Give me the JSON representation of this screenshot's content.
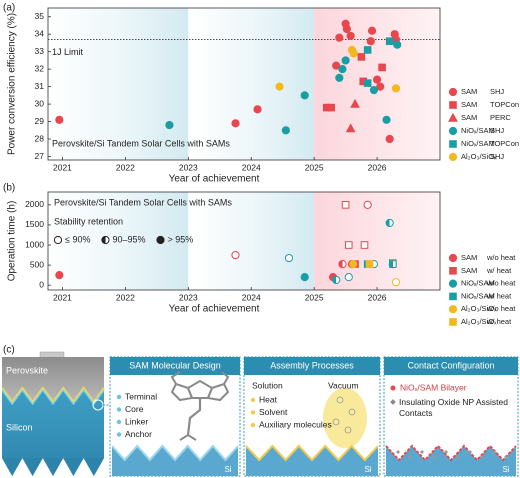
{
  "chart_data": [
    {
      "type": "scatter",
      "panel_label": "(a)",
      "xlabel": "Year of achievement",
      "ylabel": "Power conversion efficiency (%)",
      "annotation": "Perovskite/Si Tandem Solar Cells with SAMs",
      "xlim": [
        2020.77,
        2027.0
      ],
      "ylim": [
        26.8,
        35.5
      ],
      "xticks": [
        2021,
        2022,
        2023,
        2024,
        2025,
        2026
      ],
      "yticks": [
        27,
        28,
        29,
        30,
        31,
        32,
        33,
        34,
        35
      ],
      "hlines": [
        {
          "value": 33.7,
          "label": "1J Limit"
        }
      ],
      "series": [
        {
          "name": "SAM",
          "cell": "SHJ",
          "color": "#e8474e",
          "marker": "circle",
          "x": [
            2020.95,
            2023.75,
            2024.1,
            2025.35,
            2025.4,
            2025.5,
            2025.52,
            2025.58,
            2025.9,
            2025.92,
            2026.0,
            2026.05,
            2026.2,
            2026.28,
            2026.3
          ],
          "values": [
            29.1,
            28.9,
            29.7,
            32.2,
            33.8,
            34.6,
            34.3,
            33.9,
            33.6,
            34.2,
            31.4,
            31.0,
            28.0,
            34.0,
            33.7
          ]
        },
        {
          "name": "SAM",
          "cell": "TOPCon",
          "color": "#e8474e",
          "marker": "square",
          "x": [
            2025.2,
            2025.27,
            2025.75,
            2025.78,
            2026.08
          ],
          "values": [
            29.8,
            29.8,
            32.7,
            31.3,
            32.1
          ]
        },
        {
          "name": "SAM",
          "cell": "PERC",
          "color": "#e8474e",
          "marker": "triangle",
          "x": [
            2025.58,
            2025.65
          ],
          "values": [
            28.6,
            30.0
          ]
        },
        {
          "name": "NiOₓ/SAM",
          "cell": "SHJ",
          "color": "#1a9ea5",
          "marker": "circle",
          "x": [
            2022.7,
            2024.55,
            2024.85,
            2025.4,
            2025.45,
            2025.5,
            2025.95,
            2026.15,
            2026.32
          ],
          "values": [
            28.8,
            28.5,
            30.5,
            31.5,
            32.0,
            32.5,
            30.8,
            29.1,
            33.4
          ]
        },
        {
          "name": "NiOₓ/SAM",
          "cell": "TOPCon",
          "color": "#1a9ea5",
          "marker": "square",
          "x": [
            2025.85,
            2025.85,
            2026.2
          ],
          "values": [
            33.1,
            31.2,
            33.6
          ]
        },
        {
          "name": "Al₂O₃/SiOₓ",
          "cell": "SHJ",
          "color": "#f2b91e",
          "marker": "circle",
          "x": [
            2024.45,
            2025.6,
            2025.63,
            2026.3
          ],
          "values": [
            31.0,
            33.1,
            32.9,
            30.9
          ]
        }
      ]
    },
    {
      "type": "scatter",
      "panel_label": "(b)",
      "xlabel": "Year of achievement",
      "ylabel": "Operation time (h)",
      "annotation": "Perovskite/Si Tandem Solar Cells with SAMs",
      "stability_legend": {
        "title": "Stability retention",
        "items": [
          {
            "label": "≤ 90%",
            "fill": "open"
          },
          {
            "label": "90–95%",
            "fill": "half"
          },
          {
            "label": "> 95%",
            "fill": "full"
          }
        ]
      },
      "xlim": [
        2020.77,
        2027.0
      ],
      "ylim": [
        -120,
        2320
      ],
      "xticks": [
        2021,
        2022,
        2023,
        2024,
        2025,
        2026
      ],
      "yticks": [
        0,
        500,
        1000,
        1500,
        2000
      ],
      "series": [
        {
          "name": "SAM",
          "cell": "w/o heat",
          "color": "#e8474e",
          "marker": "circle",
          "x": [
            2020.95,
            2023.75,
            2025.3,
            2025.45,
            2025.6,
            2025.85,
            2026.25
          ],
          "values": [
            250,
            750,
            200,
            525,
            525,
            2000,
            525
          ],
          "fills": [
            "full",
            "open",
            "full",
            "half",
            "full",
            "open",
            "full"
          ]
        },
        {
          "name": "SAM",
          "cell": "w/ heat",
          "color": "#e8474e",
          "marker": "square",
          "x": [
            2025.5,
            2025.55,
            2025.65,
            2025.8,
            2026.25
          ],
          "values": [
            2000,
            1000,
            525,
            1000,
            550
          ],
          "fills": [
            "open",
            "open",
            "full",
            "open",
            "open"
          ]
        },
        {
          "name": "NiOₓ/SAM",
          "cell": "w/o heat",
          "color": "#1a9ea5",
          "marker": "circle",
          "x": [
            2024.6,
            2024.85,
            2025.35,
            2025.55,
            2025.95,
            2026.2
          ],
          "values": [
            675,
            200,
            130,
            200,
            525,
            1550
          ],
          "fills": [
            "open",
            "full",
            "half",
            "open",
            "open",
            "half"
          ]
        },
        {
          "name": "NiOₓ/SAM",
          "cell": "w/ heat",
          "color": "#1a9ea5",
          "marker": "square",
          "x": [
            2025.85,
            2026.25
          ],
          "values": [
            525,
            525
          ],
          "fills": [
            "half",
            "half"
          ]
        },
        {
          "name": "Al₂O₃/SiOₓ",
          "cell": "w/o heat",
          "color": "#f2b91e",
          "marker": "circle",
          "x": [
            2025.62,
            2026.3
          ],
          "values": [
            525,
            75
          ],
          "fills": [
            "full",
            "open"
          ]
        },
        {
          "name": "Al₂O₃/SiOₓ",
          "cell": "w/ heat",
          "color": "#f2b91e",
          "marker": "square",
          "x": [
            2025.88
          ],
          "values": [
            525
          ],
          "fills": [
            "full"
          ]
        }
      ]
    }
  ],
  "panel_c": {
    "panel_label": "(c)",
    "cell": {
      "top": "Perovskite",
      "bottom": "Silicon"
    },
    "boxes": [
      {
        "title": "SAM Molecular Design",
        "items": [
          "Terminal",
          "Core",
          "Linker",
          "Anchor"
        ],
        "substrate": "Si"
      },
      {
        "title": "Assembly Processes",
        "methods": [
          "Solution",
          "Vacuum"
        ],
        "items": [
          "Heat",
          "Solvent",
          "Auxiliary molecules"
        ],
        "substrate": "Si"
      },
      {
        "title": "Contact Configuration",
        "items": [
          "NiOₓ/SAM Bilayer",
          "Insulating Oxide NP Assisted Contacts"
        ],
        "substrate": "Si"
      }
    ]
  }
}
